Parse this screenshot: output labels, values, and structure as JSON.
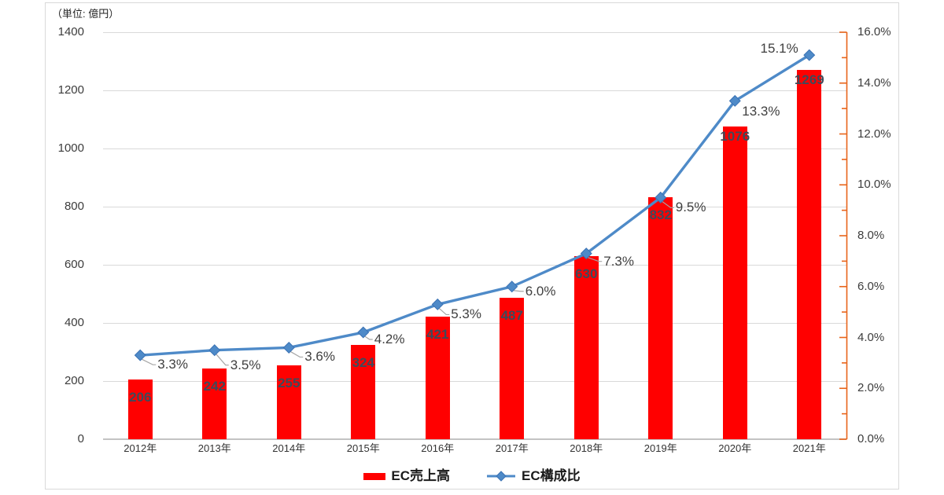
{
  "unit_label": "（単位: 億円）",
  "legend": {
    "items": [
      {
        "label": "EC売上高",
        "swatch": "bar",
        "color": "#FF0000"
      },
      {
        "label": "EC構成比",
        "swatch": "line-diamond",
        "color": "#4E8AC8"
      }
    ]
  },
  "chart_data": {
    "type": "bar+line combo, dual axis",
    "categories": [
      "2012年",
      "2013年",
      "2014年",
      "2015年",
      "2016年",
      "2017年",
      "2018年",
      "2019年",
      "2020年",
      "2021年"
    ],
    "series": [
      {
        "name": "EC売上高",
        "type": "bar",
        "axis": "left",
        "color": "#FF0000",
        "values": [
          206,
          242,
          255,
          324,
          421,
          487,
          630,
          832,
          1076,
          1269
        ],
        "data_labels": [
          "206",
          "242",
          "255",
          "324",
          "421",
          "487",
          "630",
          "832",
          "1076",
          "1269"
        ]
      },
      {
        "name": "EC構成比",
        "type": "line",
        "axis": "right",
        "color": "#4E8AC8",
        "marker": "diamond",
        "values": [
          3.3,
          3.5,
          3.6,
          4.2,
          5.3,
          6.0,
          7.3,
          9.5,
          13.3,
          15.1
        ],
        "data_labels": [
          "3.3%",
          "3.5%",
          "3.6%",
          "4.2%",
          "5.3%",
          "6.0%",
          "7.3%",
          "9.5%",
          "13.3%",
          "15.1%"
        ]
      }
    ],
    "left_axis": {
      "unit": "（単位: 億円）",
      "min": 0,
      "max": 1400,
      "step": 200,
      "tick_labels": [
        "0",
        "200",
        "400",
        "600",
        "800",
        "1000",
        "1200",
        "1400"
      ]
    },
    "right_axis": {
      "min": 0,
      "max": 16,
      "step": 2,
      "minor_step": 1,
      "color": "#E8641A",
      "tick_labels": [
        "0.0%",
        "2.0%",
        "4.0%",
        "6.0%",
        "8.0%",
        "10.0%",
        "12.0%",
        "14.0%",
        "16.0%"
      ]
    },
    "grid": true,
    "legend_position": "bottom"
  }
}
